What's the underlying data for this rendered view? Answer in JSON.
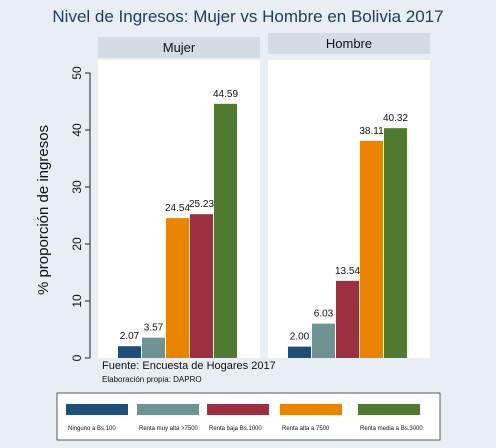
{
  "chart_data": {
    "type": "bar",
    "title": "Nivel de Ingresos: Mujer vs Hombre en Bolivia 2017",
    "ylabel": "% proporción de ingresos",
    "ylim": [
      0,
      50
    ],
    "yticks": [
      0,
      10,
      20,
      30,
      40,
      50
    ],
    "grid": false,
    "legend_position": "bottom",
    "categories": [
      "Mujer",
      "Hombre"
    ],
    "series": [
      {
        "name": "Ninguno a Bs.100",
        "color": "#1f4e79",
        "values": [
          2.07,
          2.0
        ],
        "labels": [
          "2.07",
          "2.00"
        ]
      },
      {
        "name": "Renta muy alta >7500",
        "color": "#6f9393",
        "values": [
          3.57,
          6.03
        ],
        "labels": [
          "3.57",
          "6.03"
        ]
      },
      {
        "name": "Renta baja Bs.1000",
        "color": "#9b3140",
        "values": [
          25.23,
          13.54
        ],
        "labels": [
          "25.23",
          "13.54"
        ]
      },
      {
        "name": "Renta alta a 7500",
        "color": "#e98300",
        "values": [
          24.54,
          38.11
        ],
        "labels": [
          "24.54",
          "38.11"
        ]
      },
      {
        "name": "Renta media a Bs.3000",
        "color": "#4f7a2f",
        "values": [
          44.59,
          40.32
        ],
        "labels": [
          "44.59",
          "40.32"
        ]
      }
    ],
    "bar_order": {
      "Mujer": [
        0,
        1,
        3,
        2,
        4
      ],
      "Hombre": [
        0,
        1,
        2,
        3,
        4
      ]
    },
    "notes": [
      "Fuente: Encuesta de Hogares 2017",
      "Elaboración propia: DAPRO"
    ]
  }
}
